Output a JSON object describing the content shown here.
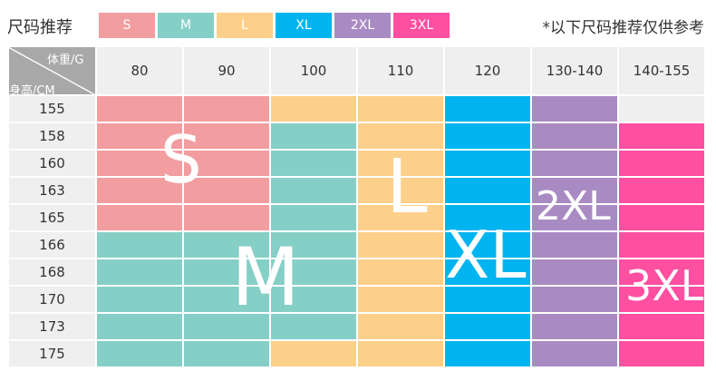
{
  "header": {
    "title": "尺码推荐",
    "note": "*以下尺码推荐仅供参考"
  },
  "legend": [
    {
      "label": "S",
      "color": "#f29da0"
    },
    {
      "label": "M",
      "color": "#85cfc6"
    },
    {
      "label": "L",
      "color": "#fcd08a"
    },
    {
      "label": "XL",
      "color": "#00b4ef"
    },
    {
      "label": "2XL",
      "color": "#a98bc3"
    },
    {
      "label": "3XL",
      "color": "#ff4fa1"
    }
  ],
  "table": {
    "corner_top": "体重/G",
    "corner_bottom": "身高/CM",
    "weights": [
      "80",
      "90",
      "100",
      "110",
      "120",
      "130-140",
      "140-155"
    ],
    "heights": [
      "155",
      "158",
      "160",
      "163",
      "165",
      "166",
      "168",
      "170",
      "173",
      "175"
    ],
    "cells": [
      [
        "S",
        "S",
        "L",
        "L",
        "XL",
        "2XL",
        ""
      ],
      [
        "S",
        "S",
        "M",
        "L",
        "XL",
        "2XL",
        "3XL"
      ],
      [
        "S",
        "S",
        "M",
        "L",
        "XL",
        "2XL",
        "3XL"
      ],
      [
        "S",
        "S",
        "M",
        "L",
        "XL",
        "2XL",
        "3XL"
      ],
      [
        "S",
        "S",
        "M",
        "L",
        "XL",
        "2XL",
        "3XL"
      ],
      [
        "M",
        "M",
        "M",
        "L",
        "XL",
        "2XL",
        "3XL"
      ],
      [
        "M",
        "M",
        "M",
        "L",
        "XL",
        "2XL",
        "3XL"
      ],
      [
        "M",
        "M",
        "M",
        "L",
        "XL",
        "2XL",
        "3XL"
      ],
      [
        "M",
        "M",
        "M",
        "L",
        "XL",
        "2XL",
        "3XL"
      ],
      [
        "M",
        "M",
        "L",
        "L",
        "XL",
        "2XL",
        "3XL"
      ]
    ],
    "region_labels": [
      "S",
      "M",
      "L",
      "XL",
      "2XL",
      "3XL"
    ]
  },
  "colors": {
    "header_bg": "#efefef",
    "corner_bg": "#a8a8a8",
    "empty_cell": "#efefef",
    "grid_line": "#ffffff"
  }
}
